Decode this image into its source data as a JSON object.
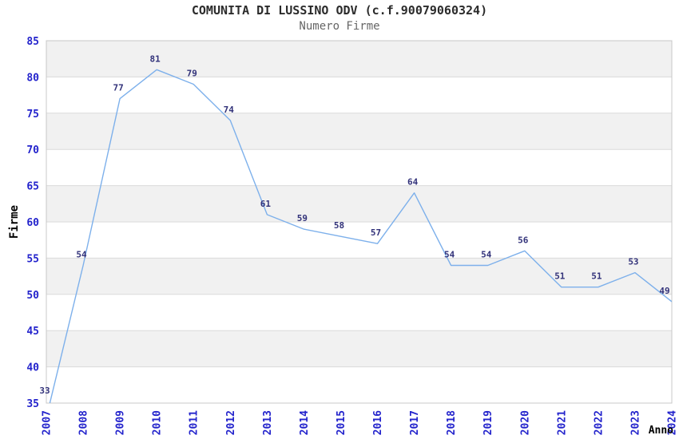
{
  "header": {
    "title": "COMUNITA DI LUSSINO ODV (c.f.90079060324)",
    "subtitle": "Numero Firme"
  },
  "chart_data": {
    "type": "line",
    "title": "COMUNITA DI LUSSINO ODV (c.f.90079060324)",
    "subtitle": "Numero Firme",
    "xlabel": "Anno",
    "ylabel": "Firme",
    "x": [
      "2007",
      "2008",
      "2009",
      "2010",
      "2011",
      "2012",
      "2013",
      "2014",
      "2015",
      "2016",
      "2017",
      "2018",
      "2019",
      "2020",
      "2021",
      "2022",
      "2023",
      "2024"
    ],
    "series": [
      {
        "name": "Numero Firme",
        "values": [
          33,
          54,
          77,
          81,
          79,
          74,
          61,
          59,
          58,
          57,
          64,
          54,
          54,
          56,
          51,
          51,
          53,
          49
        ]
      }
    ],
    "ylim": [
      35,
      85
    ],
    "ytick_step": 5,
    "grid": true,
    "alternating_bands": true,
    "show_data_labels": true,
    "legend": "none",
    "colors": {
      "line": "#7db0eb",
      "axis_tick_label": "#2323cc",
      "data_label": "#32327a",
      "band_fill": "#f1f1f1",
      "gridline": "#dadada",
      "plot_border": "#c8c8c8",
      "title": "#2b2b2b",
      "subtitle": "#666666",
      "axis_title": "#000000",
      "background": "#ffffff"
    }
  }
}
